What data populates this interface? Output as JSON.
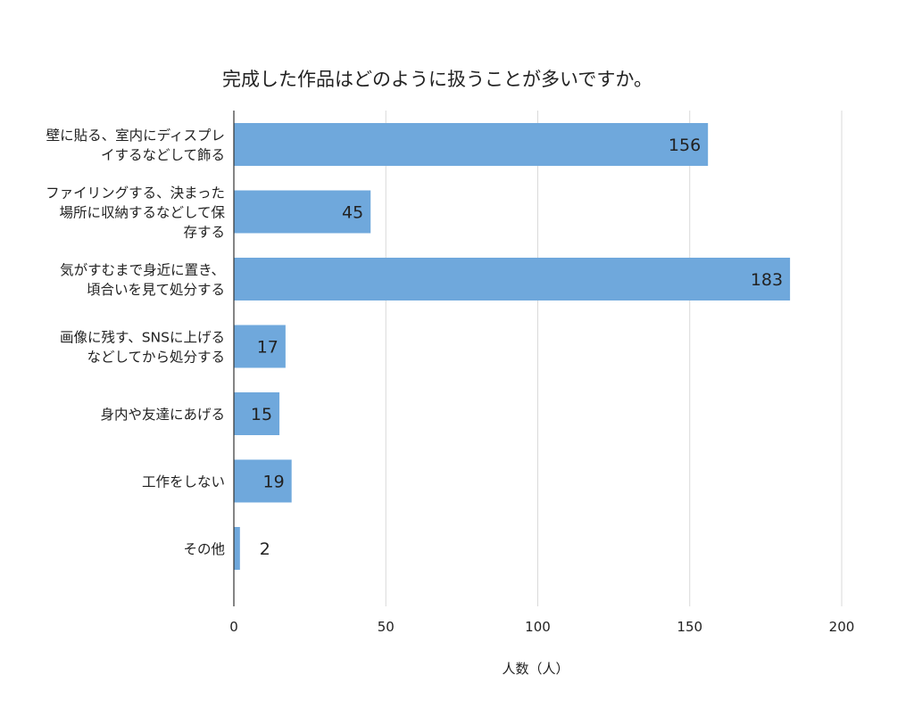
{
  "chart_data": {
    "type": "bar",
    "orientation": "horizontal",
    "title": "完成した作品はどのように扱うことが多いですか。",
    "xlabel": "人数（人）",
    "ylabel": "",
    "xlim": [
      0,
      200
    ],
    "x_ticks": [
      0,
      50,
      100,
      150,
      200
    ],
    "grid": true,
    "categories": [
      [
        "壁に貼る、室内にディスプレ",
        "イするなどして飾る"
      ],
      [
        "ファイリングする、決まった",
        "場所に収納するなどして保",
        "存する"
      ],
      [
        "気がすむまで身近に置き、",
        "頃合いを見て処分する"
      ],
      [
        "画像に残す、SNSに上げる",
        "などしてから処分する"
      ],
      [
        "身内や友達にあげる"
      ],
      [
        "工作をしない"
      ],
      [
        "その他"
      ]
    ],
    "values": [
      156,
      45,
      183,
      17,
      15,
      19,
      2
    ],
    "bar_color": "#6fa8dc",
    "label_color": "#222222"
  }
}
